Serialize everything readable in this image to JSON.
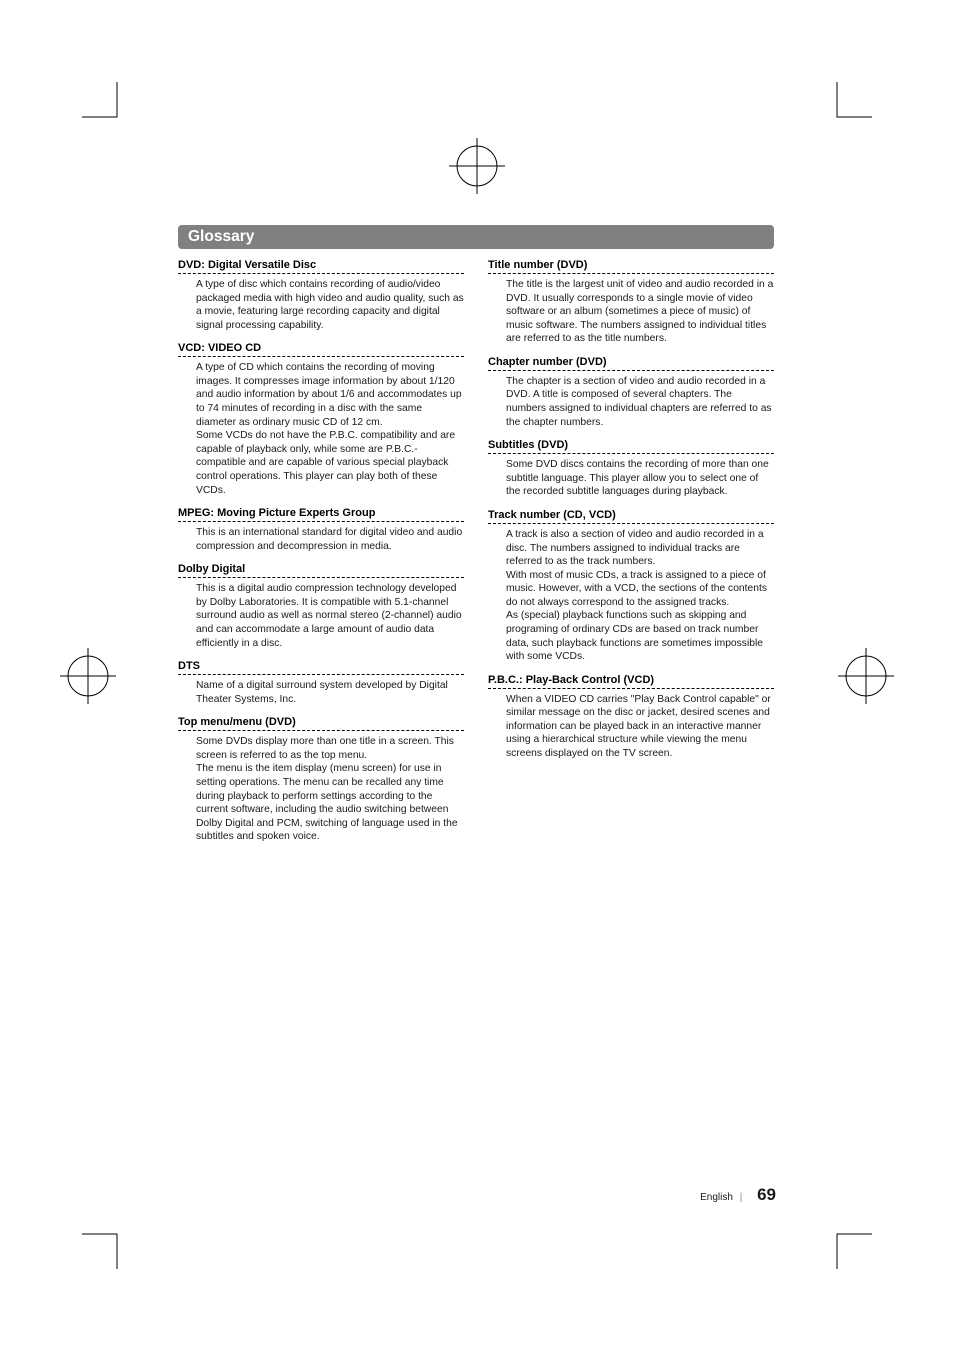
{
  "title": "Glossary",
  "footer": {
    "lang": "English",
    "page": "69"
  },
  "left": [
    {
      "term": "DVD: Digital Versatile Disc",
      "def": "A type of disc which contains recording of audio/video packaged media with high video and audio quality, such as a movie, featuring large recording capacity and digital signal processing capability."
    },
    {
      "term": "VCD: VIDEO CD",
      "def": "A type of CD which contains the recording of moving images. It compresses image information by about 1/120 and audio information by about 1/6 and accommodates up to 74 minutes of recording in a disc with the same diameter as ordinary music CD of 12 cm.\nSome VCDs do not have the P.B.C. compatibility and are capable of playback only, while some are P.B.C.-compatible and are capable of various special playback control operations. This player can play both of these VCDs."
    },
    {
      "term": "MPEG: Moving Picture Experts Group",
      "def": "This is an international standard for digital video and audio compression and decompression in media."
    },
    {
      "term": "Dolby Digital",
      "def": "This is a digital audio compression technology developed by Dolby Laboratories. It is compatible with 5.1-channel surround audio as well as normal stereo (2-channel) audio and can accommodate a large amount of audio data efficiently in a disc."
    },
    {
      "term": "DTS",
      "def": "Name of a digital surround system developed by Digital Theater Systems, Inc."
    },
    {
      "term": "Top menu/menu (DVD)",
      "def": "Some DVDs display more than one title in a screen. This screen is referred to as the top menu.\nThe menu is the item display (menu screen) for use in setting operations. The menu can be recalled any time during playback to perform settings according to the current software, including the audio switching between Dolby Digital and PCM, switching of language used in the subtitles and spoken voice."
    }
  ],
  "right": [
    {
      "term": "Title number (DVD)",
      "def": "The title is the largest unit of video and audio recorded in a DVD. It usually corresponds to a single movie of video software or an album (sometimes a piece of music) of music software. The numbers assigned to individual titles are referred to as the title numbers."
    },
    {
      "term": "Chapter number (DVD)",
      "def": "The chapter is a section of video and audio recorded in a DVD. A title is composed of several chapters. The numbers assigned to individual chapters are referred to as the chapter numbers."
    },
    {
      "term": "Subtitles (DVD)",
      "def": "Some DVD discs contains the recording of more than one subtitle language. This player allow you to select one of the recorded subtitle languages during playback."
    },
    {
      "term": "Track number (CD, VCD)",
      "def": "A track is also a section of video and audio recorded in a disc. The numbers assigned to individual tracks are referred to as the track numbers.\nWith most of music CDs, a track is assigned to a piece of music. However, with a VCD, the sections of the contents do not always correspond to the assigned tracks.\nAs (special) playback functions such as skipping and programing of ordinary CDs are based on track number data, such playback functions are sometimes impossible with some VCDs."
    },
    {
      "term": "P.B.C.: Play-Back Control (VCD)",
      "def": "When a VIDEO CD carries \"Play Back Control capable\" or similar message on the disc or jacket, desired scenes and information can be played back in an interactive manner using a hierarchical structure while viewing the menu screens displayed on the TV screen."
    }
  ]
}
